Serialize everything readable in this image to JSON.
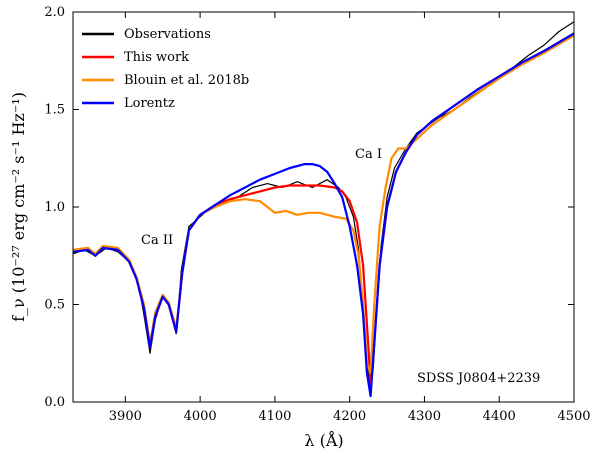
{
  "chart_data": {
    "type": "line",
    "xlabel": "λ (Å)",
    "ylabel": "f_ν (10⁻²⁷ erg cm⁻² s⁻¹ Hz⁻¹)",
    "xlim": [
      3830,
      4500
    ],
    "ylim": [
      0.0,
      2.0
    ],
    "x_ticks": [
      "3900",
      "4000",
      "4100",
      "4200",
      "4300",
      "4400",
      "4500"
    ],
    "y_ticks": [
      "0.0",
      "0.5",
      "1.0",
      "1.5",
      "2.0"
    ],
    "grid": false,
    "legend_position": "top-left",
    "annotations": [
      {
        "text": "Ca II",
        "x": 3950,
        "y": 0.82
      },
      {
        "text": "Ca I",
        "x": 4210,
        "y": 1.24
      },
      {
        "text": "SDSS J0804+2239",
        "x": 4340,
        "y": 0.12
      }
    ],
    "series": [
      {
        "name": "Observations",
        "color": "#000000",
        "x": [
          3830,
          3845,
          3860,
          3875,
          3890,
          3905,
          3918,
          3926,
          3933,
          3940,
          3950,
          3958,
          3968,
          3975,
          3985,
          4000,
          4015,
          4030,
          4050,
          4070,
          4090,
          4110,
          4130,
          4150,
          4170,
          4185,
          4195,
          4205,
          4212,
          4218,
          4223,
          4228,
          4232,
          4237,
          4242,
          4250,
          4260,
          4275,
          4290,
          4305,
          4320,
          4340,
          4360,
          4380,
          4400,
          4420,
          4440,
          4460,
          4480,
          4500
        ],
        "y": [
          0.76,
          0.78,
          0.75,
          0.79,
          0.77,
          0.72,
          0.6,
          0.42,
          0.25,
          0.42,
          0.55,
          0.5,
          0.35,
          0.68,
          0.9,
          0.95,
          1.0,
          1.02,
          1.05,
          1.1,
          1.12,
          1.1,
          1.13,
          1.1,
          1.14,
          1.1,
          1.05,
          0.95,
          0.78,
          0.5,
          0.2,
          0.05,
          0.2,
          0.55,
          0.8,
          1.05,
          1.2,
          1.3,
          1.38,
          1.42,
          1.46,
          1.5,
          1.56,
          1.61,
          1.66,
          1.72,
          1.78,
          1.83,
          1.9,
          1.95
        ]
      },
      {
        "name": "This work",
        "color": "#ff0000",
        "x": [
          3830,
          3850,
          3860,
          3870,
          3890,
          3905,
          3915,
          3925,
          3933,
          3940,
          3950,
          3958,
          3968,
          3976,
          3985,
          4000,
          4020,
          4040,
          4060,
          4080,
          4100,
          4120,
          4140,
          4160,
          4180,
          4190,
          4200,
          4210,
          4218,
          4223,
          4228,
          4233,
          4240,
          4250,
          4262,
          4275,
          4290,
          4310,
          4340,
          4370,
          4400,
          4430,
          4460,
          4500
        ],
        "y": [
          0.77,
          0.78,
          0.75,
          0.79,
          0.78,
          0.72,
          0.63,
          0.48,
          0.28,
          0.44,
          0.54,
          0.5,
          0.36,
          0.66,
          0.88,
          0.96,
          1.01,
          1.04,
          1.06,
          1.08,
          1.1,
          1.11,
          1.11,
          1.11,
          1.1,
          1.08,
          1.03,
          0.92,
          0.7,
          0.4,
          0.1,
          0.3,
          0.7,
          1.0,
          1.18,
          1.28,
          1.37,
          1.44,
          1.52,
          1.6,
          1.67,
          1.74,
          1.8,
          1.89
        ]
      },
      {
        "name": "Blouin et al. 2018b",
        "color": "#ff8c00",
        "x": [
          3830,
          3850,
          3860,
          3870,
          3890,
          3905,
          3915,
          3925,
          3933,
          3940,
          3950,
          3958,
          3968,
          3976,
          3985,
          4000,
          4020,
          4040,
          4060,
          4080,
          4090,
          4100,
          4115,
          4130,
          4145,
          4160,
          4180,
          4195,
          4205,
          4212,
          4218,
          4223,
          4228,
          4233,
          4240,
          4248,
          4256,
          4265,
          4275,
          4290,
          4310,
          4340,
          4370,
          4400,
          4430,
          4460,
          4500
        ],
        "y": [
          0.78,
          0.79,
          0.76,
          0.8,
          0.79,
          0.73,
          0.64,
          0.5,
          0.3,
          0.46,
          0.55,
          0.51,
          0.38,
          0.66,
          0.88,
          0.96,
          1.0,
          1.03,
          1.04,
          1.03,
          1.0,
          0.97,
          0.98,
          0.96,
          0.97,
          0.97,
          0.95,
          0.94,
          0.88,
          0.75,
          0.5,
          0.2,
          0.15,
          0.5,
          0.9,
          1.1,
          1.25,
          1.3,
          1.3,
          1.35,
          1.42,
          1.5,
          1.58,
          1.66,
          1.73,
          1.79,
          1.88
        ]
      },
      {
        "name": "Lorentz",
        "color": "#0000ff",
        "x": [
          3830,
          3850,
          3860,
          3870,
          3890,
          3905,
          3915,
          3925,
          3933,
          3940,
          3950,
          3958,
          3968,
          3976,
          3985,
          4000,
          4020,
          4040,
          4060,
          4080,
          4100,
          4120,
          4140,
          4150,
          4160,
          4170,
          4180,
          4190,
          4200,
          4210,
          4218,
          4223,
          4228,
          4233,
          4240,
          4250,
          4262,
          4275,
          4290,
          4310,
          4340,
          4370,
          4400,
          4430,
          4460,
          4500
        ],
        "y": [
          0.77,
          0.78,
          0.75,
          0.79,
          0.78,
          0.72,
          0.63,
          0.48,
          0.28,
          0.44,
          0.54,
          0.5,
          0.36,
          0.66,
          0.88,
          0.96,
          1.01,
          1.06,
          1.1,
          1.14,
          1.17,
          1.2,
          1.22,
          1.22,
          1.21,
          1.18,
          1.12,
          1.05,
          0.9,
          0.7,
          0.45,
          0.15,
          0.03,
          0.3,
          0.7,
          1.0,
          1.18,
          1.28,
          1.37,
          1.44,
          1.52,
          1.6,
          1.67,
          1.74,
          1.8,
          1.89
        ]
      }
    ]
  }
}
